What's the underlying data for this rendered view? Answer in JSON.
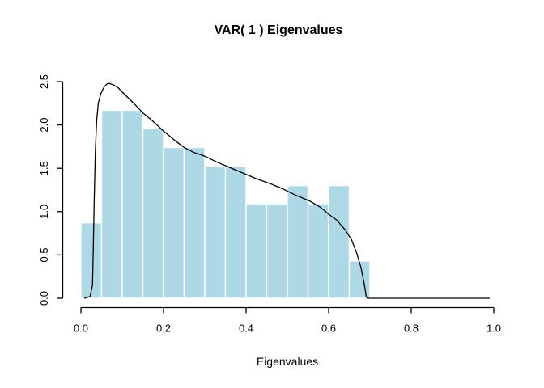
{
  "chart_data": {
    "type": "bar",
    "subtype": "histogram_with_density_curve",
    "title": "VAR( 1 ) Eigenvalues",
    "xlabel": "Eigenvalues",
    "ylabel": "",
    "xlim": [
      0.0,
      1.0
    ],
    "ylim": [
      0.0,
      2.5
    ],
    "grid": false,
    "legend": false,
    "x_ticks": [
      0.0,
      0.2,
      0.4,
      0.6,
      0.8,
      1.0
    ],
    "x_tick_labels": [
      "0.0",
      "0.2",
      "0.4",
      "0.6",
      "0.8",
      "1.0"
    ],
    "y_ticks": [
      0.0,
      0.5,
      1.0,
      1.5,
      2.0,
      2.5
    ],
    "y_tick_labels": [
      "0.0",
      "0.5",
      "1.0",
      "1.5",
      "2.0",
      "2.5"
    ],
    "bin_width": 0.05,
    "bins": [
      {
        "x0": 0.0,
        "x1": 0.05,
        "density": 0.87
      },
      {
        "x0": 0.05,
        "x1": 0.1,
        "density": 2.17
      },
      {
        "x0": 0.1,
        "x1": 0.15,
        "density": 2.17
      },
      {
        "x0": 0.15,
        "x1": 0.2,
        "density": 1.96
      },
      {
        "x0": 0.2,
        "x1": 0.25,
        "density": 1.74
      },
      {
        "x0": 0.25,
        "x1": 0.3,
        "density": 1.74
      },
      {
        "x0": 0.3,
        "x1": 0.35,
        "density": 1.52
      },
      {
        "x0": 0.35,
        "x1": 0.4,
        "density": 1.52
      },
      {
        "x0": 0.4,
        "x1": 0.45,
        "density": 1.09
      },
      {
        "x0": 0.45,
        "x1": 0.5,
        "density": 1.09
      },
      {
        "x0": 0.5,
        "x1": 0.55,
        "density": 1.3
      },
      {
        "x0": 0.55,
        "x1": 0.6,
        "density": 1.09
      },
      {
        "x0": 0.6,
        "x1": 0.65,
        "density": 1.3
      },
      {
        "x0": 0.65,
        "x1": 0.7,
        "density": 0.43
      }
    ],
    "curve": {
      "name": "density",
      "points": [
        [
          0.008,
          0.0
        ],
        [
          0.022,
          0.02
        ],
        [
          0.028,
          0.15
        ],
        [
          0.03,
          0.6
        ],
        [
          0.032,
          1.1
        ],
        [
          0.035,
          1.7
        ],
        [
          0.038,
          2.05
        ],
        [
          0.042,
          2.25
        ],
        [
          0.048,
          2.36
        ],
        [
          0.055,
          2.43
        ],
        [
          0.062,
          2.47
        ],
        [
          0.068,
          2.48
        ],
        [
          0.08,
          2.46
        ],
        [
          0.09,
          2.43
        ],
        [
          0.1,
          2.38
        ],
        [
          0.115,
          2.31
        ],
        [
          0.13,
          2.24
        ],
        [
          0.15,
          2.14
        ],
        [
          0.175,
          2.04
        ],
        [
          0.2,
          1.93
        ],
        [
          0.225,
          1.83
        ],
        [
          0.25,
          1.74
        ],
        [
          0.275,
          1.68
        ],
        [
          0.3,
          1.64
        ],
        [
          0.33,
          1.57
        ],
        [
          0.36,
          1.51
        ],
        [
          0.39,
          1.45
        ],
        [
          0.425,
          1.38
        ],
        [
          0.46,
          1.32
        ],
        [
          0.49,
          1.26
        ],
        [
          0.52,
          1.19
        ],
        [
          0.555,
          1.12
        ],
        [
          0.58,
          1.05
        ],
        [
          0.6,
          0.97
        ],
        [
          0.62,
          0.9
        ],
        [
          0.64,
          0.79
        ],
        [
          0.655,
          0.68
        ],
        [
          0.668,
          0.52
        ],
        [
          0.678,
          0.36
        ],
        [
          0.686,
          0.17
        ],
        [
          0.691,
          0.02
        ],
        [
          0.694,
          0.0
        ],
        [
          0.99,
          0.0
        ]
      ]
    },
    "colors": {
      "bar_fill": "#ADD8E6",
      "bar_border": "#FFFFFF",
      "curve": "#000000",
      "axis": "#000000",
      "text": "#000000",
      "background": "#FFFFFF"
    }
  }
}
